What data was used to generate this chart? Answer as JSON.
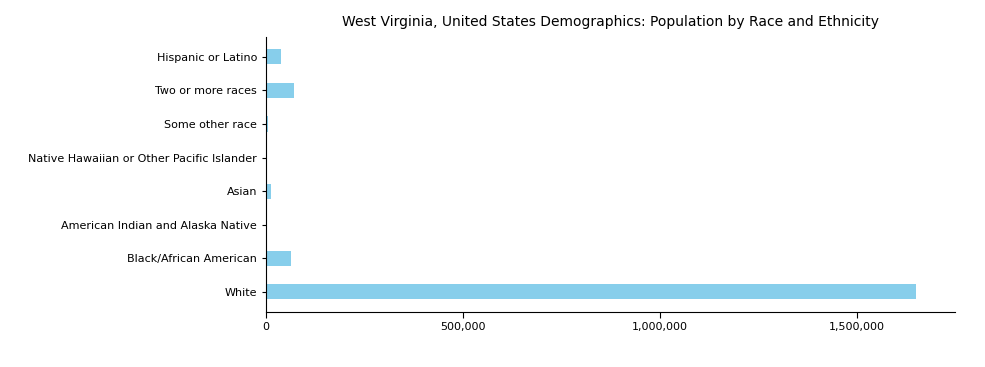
{
  "title": "West Virginia, United States Demographics: Population by Race and Ethnicity",
  "categories": [
    "White",
    "Black/African American",
    "American Indian and Alaska Native",
    "Asian",
    "Native Hawaiian or Other Pacific Islander",
    "Some other race",
    "Two or more races",
    "Hispanic or Latino"
  ],
  "values": [
    1650000,
    63000,
    3200,
    12000,
    600,
    4500,
    72000,
    38000
  ],
  "bar_color": "#87CEEB",
  "background_color": "#ffffff",
  "xlim": [
    0,
    1750000
  ],
  "title_fontsize": 10,
  "bar_height": 0.45
}
